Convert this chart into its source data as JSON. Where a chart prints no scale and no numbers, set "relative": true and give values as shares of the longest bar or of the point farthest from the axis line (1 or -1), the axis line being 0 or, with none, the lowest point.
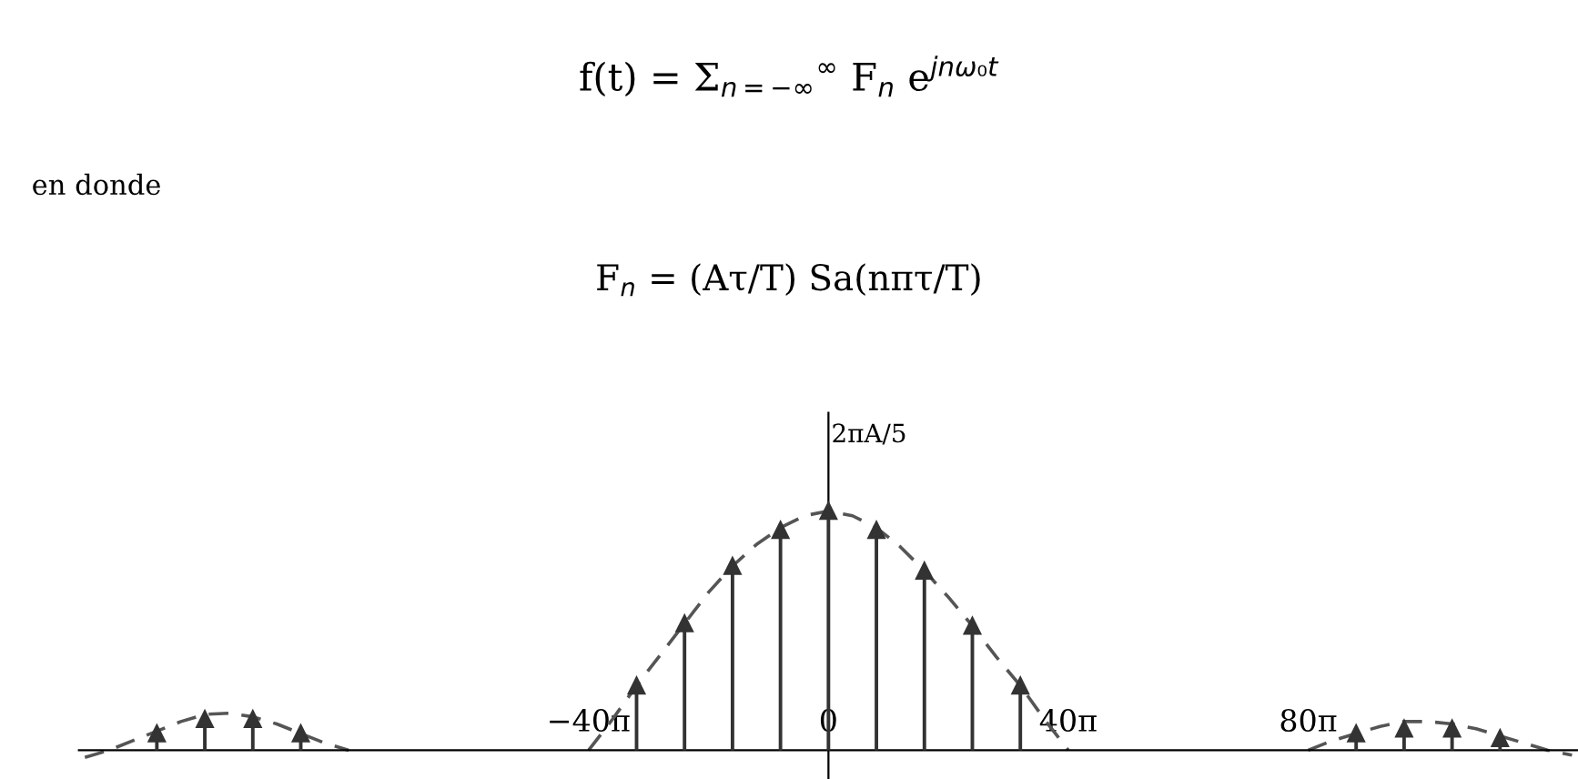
{
  "chart_data": {
    "type": "lollipop",
    "title": "f(t) = Σ$_{n=−∞}$$^{∞}$ F$_{n}$ e$^{jnω₀t}$",
    "annotations": [
      "en donde",
      "F$_{n}$ = (Aτ/T) Sa(nπτ/T)"
    ],
    "ylabel": "2πA/5",
    "relative": true,
    "marker": "triangle",
    "x": [
      -351.86,
      -326.73,
      -301.59,
      -276.46,
      -100.53,
      -75.4,
      -50.27,
      -25.13,
      0,
      25.13,
      50.27,
      75.4,
      100.53,
      276.46,
      301.59,
      326.73,
      351.86
    ],
    "values": [
      0.07,
      0.13,
      0.13,
      0.07,
      0.27,
      0.53,
      0.77,
      0.92,
      1,
      0.92,
      0.75,
      0.52,
      0.27,
      0.07,
      0.09,
      0.09,
      0.05
    ],
    "series": [
      {
        "type": "line",
        "line_style": "dashed",
        "marker": "none",
        "x": [
          -389.56,
          -376.99,
          -364.42,
          -351.86,
          -339.29,
          -326.73,
          -314.16,
          -301.59,
          -289.03,
          -276.46,
          -263.89,
          -251.33,
          -188.5,
          -125.66,
          -113.1,
          -100.53,
          -87.96,
          -75.4,
          -62.83,
          -50.27,
          -37.7,
          -25.13,
          -12.57,
          0,
          12.57,
          25.13,
          37.7,
          50.27,
          62.83,
          75.4,
          87.96,
          100.53,
          113.1,
          125.66,
          188.5,
          251.33,
          263.89,
          276.46,
          289.03,
          301.59,
          314.16,
          326.73,
          339.29,
          351.86,
          364.42,
          376.99,
          389.56
        ],
        "values": [
          -0.03,
          0,
          0.04,
          0.08,
          0.12,
          0.15,
          0.155,
          0.14,
          0.11,
          0.07,
          0.03,
          0,
          null,
          0,
          0.13,
          0.27,
          0.4,
          0.53,
          0.66,
          0.77,
          0.86,
          0.93,
          0.98,
          1,
          0.98,
          0.93,
          0.85,
          0.75,
          0.64,
          0.52,
          0.39,
          0.27,
          0.13,
          0,
          null,
          0,
          0.04,
          0.07,
          0.1,
          0.12,
          0.12,
          0.11,
          0.09,
          0.06,
          0.03,
          0,
          -0.02
        ]
      }
    ],
    "xlim": [
      -392.7,
      392.7
    ],
    "xticks": [
      {
        "value": -125.66,
        "label": "−40π"
      },
      {
        "value": 0,
        "label": "0"
      },
      {
        "value": 125.66,
        "label": "40π"
      },
      {
        "value": 251.33,
        "label": "80π"
      }
    ],
    "grid": false,
    "legend": false
  }
}
